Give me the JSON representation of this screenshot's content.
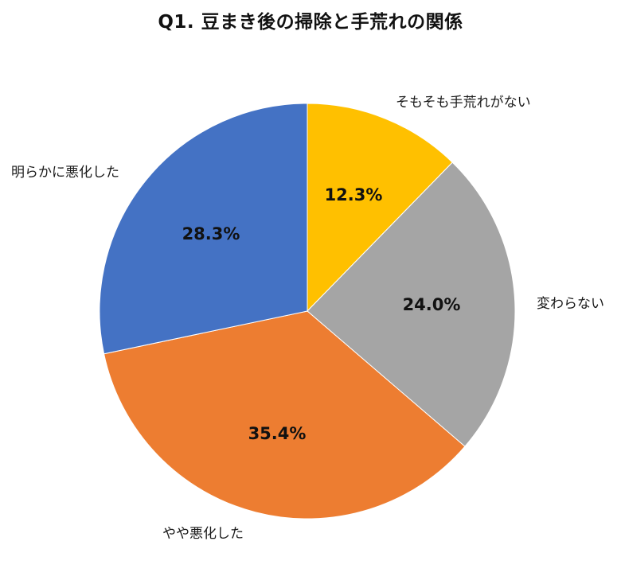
{
  "chart_data": {
    "type": "pie",
    "title": "Q1. 豆まき後の掃除と手荒れの関係",
    "start_angle_deg": 0,
    "direction": "clockwise",
    "slices": [
      {
        "label": "そもそも手荒れがない",
        "value": 12.3,
        "display": "12.3%",
        "color": "#FFC000"
      },
      {
        "label": "変わらない",
        "value": 24.0,
        "display": "24.0%",
        "color": "#A5A5A5"
      },
      {
        "label": "やや悪化した",
        "value": 35.4,
        "display": "35.4%",
        "color": "#ED7D31"
      },
      {
        "label": "明らかに悪化した",
        "value": 28.3,
        "display": "28.3%",
        "color": "#4472C4"
      }
    ],
    "legend": "none (category labels placed outside slices)",
    "data_labels": "percent inside slices"
  }
}
